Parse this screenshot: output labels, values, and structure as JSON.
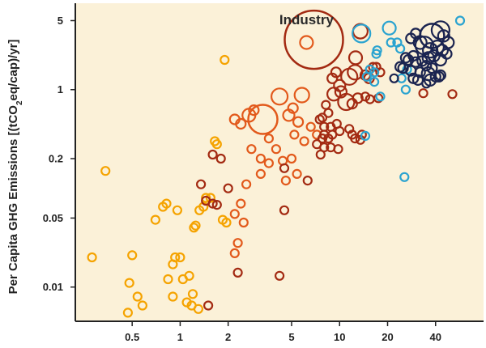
{
  "chart_data": {
    "type": "scatter",
    "title": "",
    "xlabel": "",
    "ylabel_parts": [
      "Per Capita GHG Emissions [(tCO",
      "2",
      "eq/cap)/yr]"
    ],
    "x_scale": "log",
    "y_scale": "log",
    "xlim": [
      0.22,
      80
    ],
    "ylim": [
      0.0045,
      7.5
    ],
    "xticks": [
      {
        "value": 0.5,
        "label": "0.5"
      },
      {
        "value": 1,
        "label": "1"
      },
      {
        "value": 2,
        "label": "2"
      },
      {
        "value": 5,
        "label": "5"
      },
      {
        "value": 10,
        "label": "10"
      },
      {
        "value": 20,
        "label": "20"
      },
      {
        "value": 40,
        "label": "40"
      }
    ],
    "yticks": [
      {
        "value": 0.01,
        "label": "0.01"
      },
      {
        "value": 0.05,
        "label": "0.05"
      },
      {
        "value": 0.2,
        "label": "0.2"
      },
      {
        "value": 1,
        "label": "1"
      },
      {
        "value": 5,
        "label": "5"
      }
    ],
    "grid": false,
    "annotations": [
      {
        "text": "Industry",
        "x": 6.2,
        "y": 4.6
      }
    ],
    "colors": {
      "background": "#fbf1d8",
      "axis": "#222222",
      "series_1": "#f5a300",
      "series_2": "#e2591b",
      "series_3": "#a32a12",
      "series_4": "#2aa3d0",
      "series_5": "#1b2450"
    },
    "series": [
      {
        "color": "#f5a300",
        "points": [
          [
            0.28,
            0.02,
            5
          ],
          [
            0.34,
            0.15,
            5
          ],
          [
            0.5,
            0.021,
            5
          ],
          [
            0.48,
            0.011,
            5
          ],
          [
            0.54,
            0.008,
            5
          ],
          [
            0.47,
            0.0055,
            5
          ],
          [
            0.58,
            0.0065,
            5
          ],
          [
            0.7,
            0.048,
            5
          ],
          [
            0.78,
            0.065,
            5
          ],
          [
            0.82,
            0.07,
            5
          ],
          [
            0.84,
            0.012,
            5
          ],
          [
            0.9,
            0.008,
            5
          ],
          [
            0.93,
            0.02,
            5
          ],
          [
            0.9,
            0.017,
            5
          ],
          [
            0.96,
            0.06,
            5
          ],
          [
            1.0,
            0.02,
            5
          ],
          [
            1.04,
            0.012,
            5
          ],
          [
            1.1,
            0.007,
            5
          ],
          [
            1.14,
            0.013,
            5
          ],
          [
            1.18,
            0.0065,
            5
          ],
          [
            1.2,
            0.0085,
            5
          ],
          [
            1.22,
            0.04,
            5
          ],
          [
            1.25,
            0.042,
            5
          ],
          [
            1.3,
            0.006,
            5
          ],
          [
            1.32,
            0.06,
            5
          ],
          [
            1.4,
            0.065,
            5
          ],
          [
            1.45,
            0.08,
            5
          ],
          [
            1.55,
            0.08,
            5
          ],
          [
            1.65,
            0.3,
            5
          ],
          [
            1.7,
            0.28,
            5
          ],
          [
            1.85,
            0.048,
            5
          ],
          [
            1.95,
            0.045,
            5
          ],
          [
            1.9,
            2.0,
            5
          ]
        ]
      },
      {
        "color": "#e2591b",
        "points": [
          [
            2.2,
            0.5,
            6
          ],
          [
            2.4,
            0.45,
            6
          ],
          [
            2.7,
            0.55,
            8
          ],
          [
            2.9,
            0.62,
            6
          ],
          [
            3.3,
            0.5,
            18
          ],
          [
            3.6,
            0.32,
            5
          ],
          [
            2.8,
            0.25,
            5
          ],
          [
            3.2,
            0.2,
            5
          ],
          [
            3.6,
            0.18,
            5
          ],
          [
            4.0,
            0.25,
            5
          ],
          [
            4.2,
            0.85,
            10
          ],
          [
            4.8,
            0.55,
            7
          ],
          [
            5.1,
            0.65,
            6
          ],
          [
            5.5,
            0.47,
            6
          ],
          [
            5.2,
            0.35,
            5
          ],
          [
            5.8,
            0.88,
            9
          ],
          [
            6.2,
            3.0,
            8
          ],
          [
            6.0,
            0.3,
            5
          ],
          [
            6.6,
            0.42,
            5
          ],
          [
            7.2,
            0.35,
            5
          ],
          [
            5.0,
            0.2,
            5
          ],
          [
            5.4,
            0.14,
            5
          ],
          [
            4.6,
            0.12,
            5
          ],
          [
            4.4,
            0.19,
            5
          ],
          [
            3.2,
            0.14,
            5
          ],
          [
            2.6,
            0.11,
            5
          ],
          [
            2.4,
            0.07,
            5
          ],
          [
            2.2,
            0.055,
            5
          ],
          [
            2.5,
            0.045,
            5
          ],
          [
            2.3,
            0.028,
            5
          ],
          [
            2.2,
            0.022,
            5
          ]
        ]
      },
      {
        "color": "#a32a12",
        "points": [
          [
            6.9,
            3.2,
            36
          ],
          [
            13.5,
            3.9,
            9
          ],
          [
            9.0,
            1.3,
            6
          ],
          [
            9.5,
            1.5,
            6
          ],
          [
            10.0,
            1.1,
            7
          ],
          [
            11.5,
            1.35,
            10
          ],
          [
            12.5,
            1.5,
            9
          ],
          [
            12.6,
            2.1,
            8
          ],
          [
            14.5,
            1.4,
            6
          ],
          [
            15.3,
            1.3,
            6
          ],
          [
            16.2,
            1.7,
            5
          ],
          [
            17.0,
            1.7,
            5
          ],
          [
            18.0,
            1.5,
            5
          ],
          [
            9.2,
            0.9,
            8
          ],
          [
            10.2,
            0.95,
            7
          ],
          [
            11.0,
            0.75,
            10
          ],
          [
            12.0,
            0.72,
            6
          ],
          [
            13.0,
            0.82,
            6
          ],
          [
            14.5,
            0.85,
            5
          ],
          [
            15.5,
            0.8,
            5
          ],
          [
            17.5,
            0.82,
            5
          ],
          [
            8.2,
            0.7,
            5
          ],
          [
            8.5,
            0.58,
            5
          ],
          [
            7.8,
            0.52,
            5
          ],
          [
            8.0,
            0.42,
            5
          ],
          [
            8.8,
            0.42,
            5
          ],
          [
            7.5,
            0.5,
            5
          ],
          [
            9.6,
            0.45,
            5
          ],
          [
            10.0,
            0.38,
            5
          ],
          [
            11.5,
            0.4,
            5
          ],
          [
            12.5,
            0.32,
            5
          ],
          [
            13.8,
            0.35,
            5
          ],
          [
            9.0,
            0.35,
            5
          ],
          [
            8.5,
            0.32,
            5
          ],
          [
            8.0,
            0.35,
            5
          ],
          [
            7.8,
            0.32,
            5
          ],
          [
            7.2,
            0.28,
            5
          ],
          [
            7.6,
            0.22,
            5
          ],
          [
            8.0,
            0.26,
            5
          ],
          [
            8.8,
            0.26,
            5
          ],
          [
            9.8,
            0.25,
            5
          ],
          [
            12.0,
            0.35,
            5
          ],
          [
            13.5,
            0.31,
            5
          ],
          [
            4.5,
            0.16,
            5
          ],
          [
            6.3,
            0.12,
            5
          ],
          [
            4.5,
            0.06,
            5
          ],
          [
            4.2,
            0.013,
            5
          ],
          [
            1.6,
            0.22,
            5
          ],
          [
            1.8,
            0.2,
            5
          ],
          [
            2.0,
            0.1,
            5
          ],
          [
            1.6,
            0.07,
            5
          ],
          [
            1.45,
            0.075,
            5
          ],
          [
            1.35,
            0.11,
            5
          ],
          [
            1.7,
            0.068,
            5
          ],
          [
            2.3,
            0.014,
            5
          ],
          [
            33.5,
            0.92,
            5
          ],
          [
            51,
            0.9,
            5
          ],
          [
            1.5,
            0.0065,
            5
          ]
        ]
      },
      {
        "color": "#2aa3d0",
        "points": [
          [
            13.7,
            3.7,
            11
          ],
          [
            20.5,
            4.2,
            8
          ],
          [
            17.0,
            2.3,
            5
          ],
          [
            17.2,
            2.5,
            5
          ],
          [
            15.5,
            1.6,
            5
          ],
          [
            16.5,
            1.5,
            5
          ],
          [
            16.5,
            1.2,
            5
          ],
          [
            18.0,
            0.85,
            5
          ],
          [
            21.0,
            3.0,
            5
          ],
          [
            23.0,
            3.0,
            5
          ],
          [
            24.0,
            2.6,
            5
          ],
          [
            26.5,
            1.6,
            5
          ],
          [
            24.5,
            1.3,
            5
          ],
          [
            26.0,
            1.0,
            5
          ],
          [
            25.5,
            0.13,
            5
          ],
          [
            14.5,
            0.34,
            5
          ],
          [
            57,
            5.0,
            5
          ],
          [
            14.8,
            1.35,
            5
          ]
        ]
      },
      {
        "color": "#1b2450",
        "points": [
          [
            38,
            3.5,
            15
          ],
          [
            43,
            4.0,
            11
          ],
          [
            45,
            3.5,
            7
          ],
          [
            30,
            3.7,
            6
          ],
          [
            28,
            3.3,
            6
          ],
          [
            32,
            3.0,
            8
          ],
          [
            34,
            2.8,
            11
          ],
          [
            37,
            2.5,
            9
          ],
          [
            41,
            2.7,
            8
          ],
          [
            44,
            2.5,
            7
          ],
          [
            48,
            3.0,
            7
          ],
          [
            36,
            2.1,
            7
          ],
          [
            39,
            2.2,
            7
          ],
          [
            43,
            2.0,
            7
          ],
          [
            47,
            2.3,
            6
          ],
          [
            26,
            2.1,
            6
          ],
          [
            27,
            2.0,
            6
          ],
          [
            29,
            2.2,
            6
          ],
          [
            30,
            1.9,
            6
          ],
          [
            33,
            1.95,
            6
          ],
          [
            35,
            1.75,
            6
          ],
          [
            38,
            1.65,
            6
          ],
          [
            24,
            1.7,
            6
          ],
          [
            25,
            1.65,
            6
          ],
          [
            28,
            1.55,
            6
          ],
          [
            32,
            1.5,
            6
          ],
          [
            36,
            1.45,
            8
          ],
          [
            40,
            1.35,
            6
          ],
          [
            43,
            1.4,
            6
          ],
          [
            22,
            1.3,
            5
          ],
          [
            29,
            1.3,
            6
          ],
          [
            31,
            1.25,
            6
          ],
          [
            37,
            1.25,
            7
          ],
          [
            42,
            1.35,
            6
          ],
          [
            35,
            1.15,
            5
          ]
        ]
      }
    ]
  }
}
